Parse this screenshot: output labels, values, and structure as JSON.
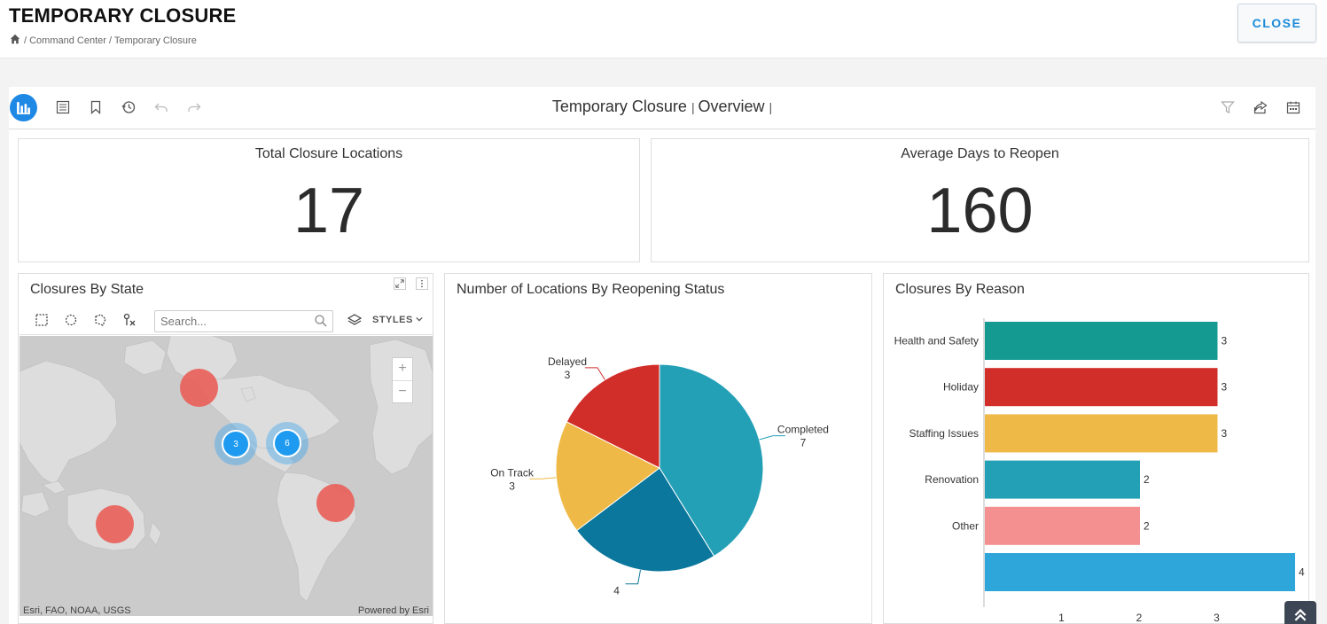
{
  "header": {
    "title": "TEMPORARY CLOSURE",
    "breadcrumb": "/ Command Center / Temporary Closure",
    "close_label": "CLOSE"
  },
  "dashboard": {
    "title": "Temporary Closure",
    "subtitle": "Overview",
    "toolbar_icons": [
      "dashboard-icon",
      "list-icon",
      "bookmark-icon",
      "history-icon",
      "undo-icon",
      "redo-icon",
      "filter-icon",
      "share-icon",
      "calendar-icon"
    ]
  },
  "kpis": [
    {
      "title": "Total Closure Locations",
      "value": "17"
    },
    {
      "title": "Average Days to Reopen",
      "value": "160"
    }
  ],
  "map": {
    "title": "Closures By State",
    "search_placeholder": "Search...",
    "styles_label": "STYLES",
    "attribution_left": "Esri, FAO, NOAA, USGS",
    "attribution_right": "Powered by Esri",
    "clusters": [
      {
        "count": "3",
        "color": "#1e9bf0"
      },
      {
        "count": "6",
        "color": "#1e9bf0"
      }
    ],
    "marker_color": "#e8615a"
  },
  "pie": {
    "title": "Number of Locations By Reopening Status",
    "chart_data": {
      "type": "pie",
      "slices": [
        {
          "label": "Completed",
          "value": 7,
          "color": "#23a0b6"
        },
        {
          "label": "",
          "value": 4,
          "color": "#0b779c"
        },
        {
          "label": "On Track",
          "value": 3,
          "color": "#efb947"
        },
        {
          "label": "Delayed",
          "value": 3,
          "color": "#d12d29"
        }
      ]
    }
  },
  "bars": {
    "title": "Closures By Reason",
    "chart_data": {
      "type": "bar",
      "orientation": "horizontal",
      "categories": [
        "Health and Safety",
        "Holiday",
        "Staffing Issues",
        "Renovation",
        "Other",
        ""
      ],
      "values": [
        3,
        3,
        3,
        2,
        2,
        4
      ],
      "colors": [
        "#159a91",
        "#d12d29",
        "#efb947",
        "#23a0b6",
        "#f59090",
        "#2ea6da"
      ],
      "x_ticks": [
        "1",
        "2",
        "3"
      ],
      "xlim": [
        0,
        4
      ]
    }
  }
}
